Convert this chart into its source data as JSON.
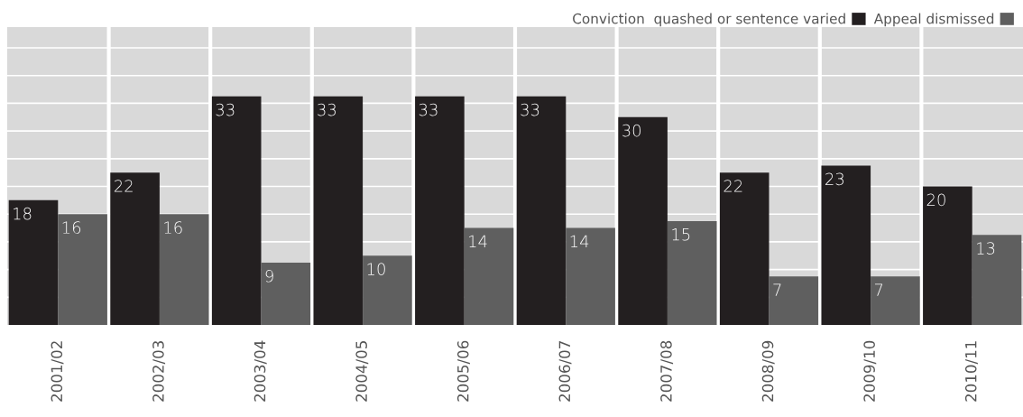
{
  "chart_data": {
    "type": "bar",
    "categories": [
      "2001/02",
      "2002/03",
      "2003/04",
      "2004/05",
      "2005/06",
      "2006/07",
      "2007/08",
      "2008/09",
      "2009/10",
      "2010/11"
    ],
    "series": [
      {
        "name": "Conviction  quashed or sentence varied",
        "color": "#231f20",
        "values": [
          18,
          22,
          33,
          33,
          33,
          33,
          30,
          22,
          23,
          20
        ]
      },
      {
        "name": "Appeal dismissed",
        "color": "#5f5f5f",
        "values": [
          16,
          16,
          9,
          10,
          14,
          14,
          15,
          7,
          7,
          13
        ]
      }
    ],
    "data_labels": true,
    "ylim": [
      0,
      43
    ],
    "yticks": [
      {
        "value": 4,
        "label": null
      },
      {
        "value": 8,
        "label": null
      },
      {
        "value": 12,
        "label": null
      },
      {
        "value": 16,
        "label": null
      },
      {
        "value": 20,
        "label": null
      },
      {
        "value": 24,
        "label": null
      },
      {
        "value": 28,
        "label": null
      },
      {
        "value": 32,
        "label": null
      },
      {
        "value": 36,
        "label": null
      },
      {
        "value": 40,
        "label": null
      }
    ],
    "grid": "y",
    "legend": "top right",
    "tick_labels": "x"
  }
}
